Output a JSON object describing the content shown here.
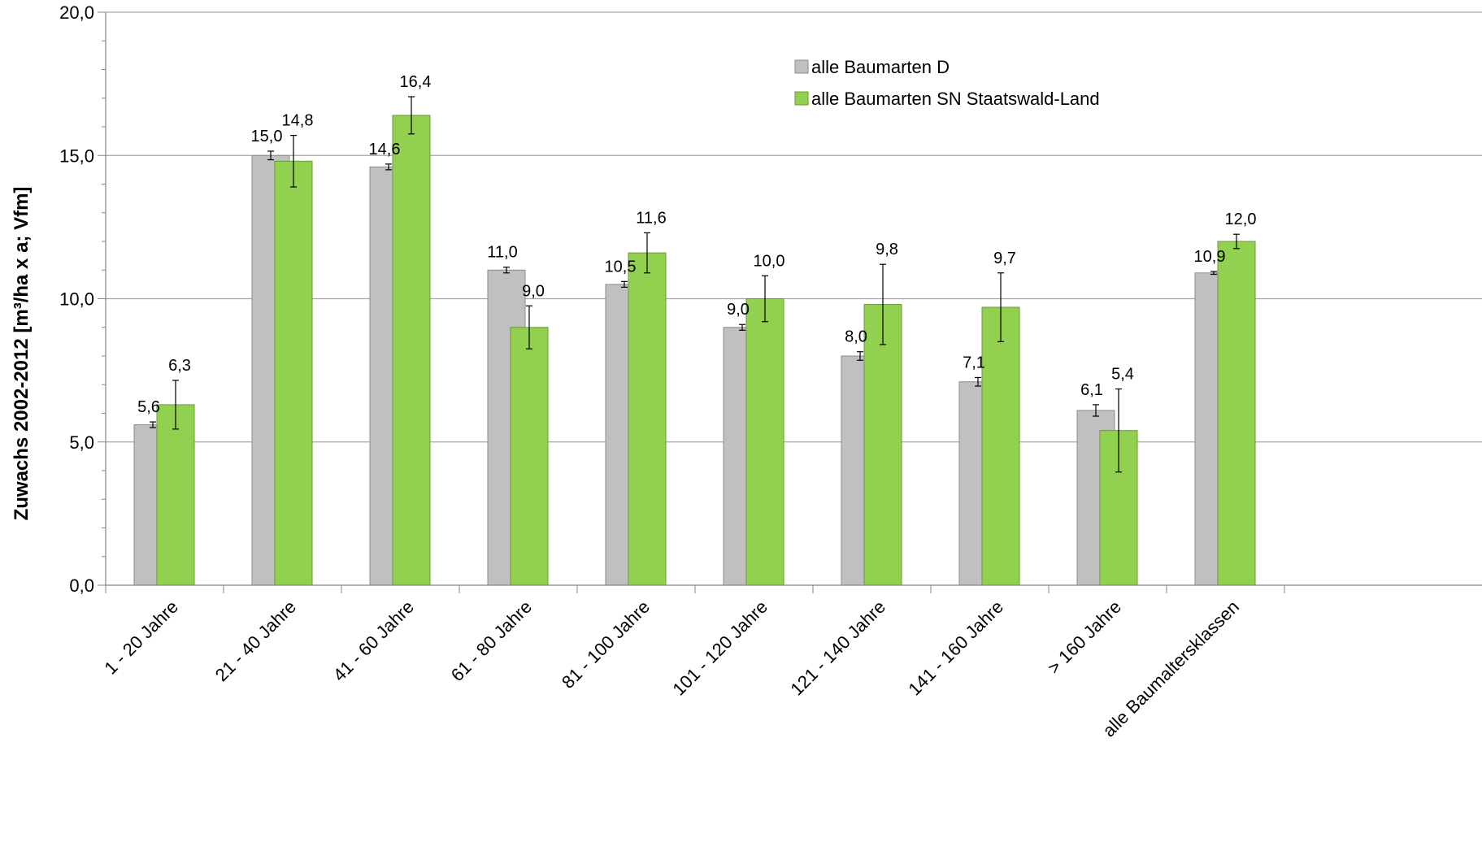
{
  "chart_data": {
    "type": "bar",
    "title": "",
    "xlabel": "",
    "ylabel": "Zuwachs 2002-2012 [m³/ha x a; Vfm]",
    "ylim": [
      0,
      20
    ],
    "yticks": [
      "0,0",
      "5,0",
      "10,0",
      "15,0",
      "20,0"
    ],
    "ytick_values": [
      0,
      5,
      10,
      15,
      20
    ],
    "grid": true,
    "legend_position": "top-right",
    "categories": [
      "1 - 20 Jahre",
      "21 - 40 Jahre",
      "41 - 60 Jahre",
      "61 - 80 Jahre",
      "81 - 100 Jahre",
      "101 - 120 Jahre",
      "121 - 140 Jahre",
      "141 - 160 Jahre",
      "> 160 Jahre",
      "alle Baumaltersklassen"
    ],
    "series": [
      {
        "name": "alle Baumarten D",
        "color": "#c0c0c0",
        "values": [
          5.6,
          15.0,
          14.6,
          11.0,
          10.5,
          9.0,
          8.0,
          7.1,
          6.1,
          10.9
        ],
        "labels": [
          "5,6",
          "15,0",
          "14,6",
          "11,0",
          "10,5",
          "9,0",
          "8,0",
          "7,1",
          "6,1",
          "10,9"
        ],
        "error": [
          0.1,
          0.15,
          0.1,
          0.1,
          0.1,
          0.1,
          0.15,
          0.15,
          0.2,
          0.05
        ]
      },
      {
        "name": "alle Baumarten SN Staatswald-Land",
        "color": "#92d050",
        "values": [
          6.3,
          14.8,
          16.4,
          9.0,
          11.6,
          10.0,
          9.8,
          9.7,
          5.4,
          12.0
        ],
        "labels": [
          "6,3",
          "14,8",
          "16,4",
          "9,0",
          "11,6",
          "10,0",
          "9,8",
          "9,7",
          "5,4",
          "12,0"
        ],
        "error": [
          0.85,
          0.9,
          0.65,
          0.75,
          0.7,
          0.8,
          1.4,
          1.2,
          1.45,
          0.25
        ]
      }
    ]
  }
}
